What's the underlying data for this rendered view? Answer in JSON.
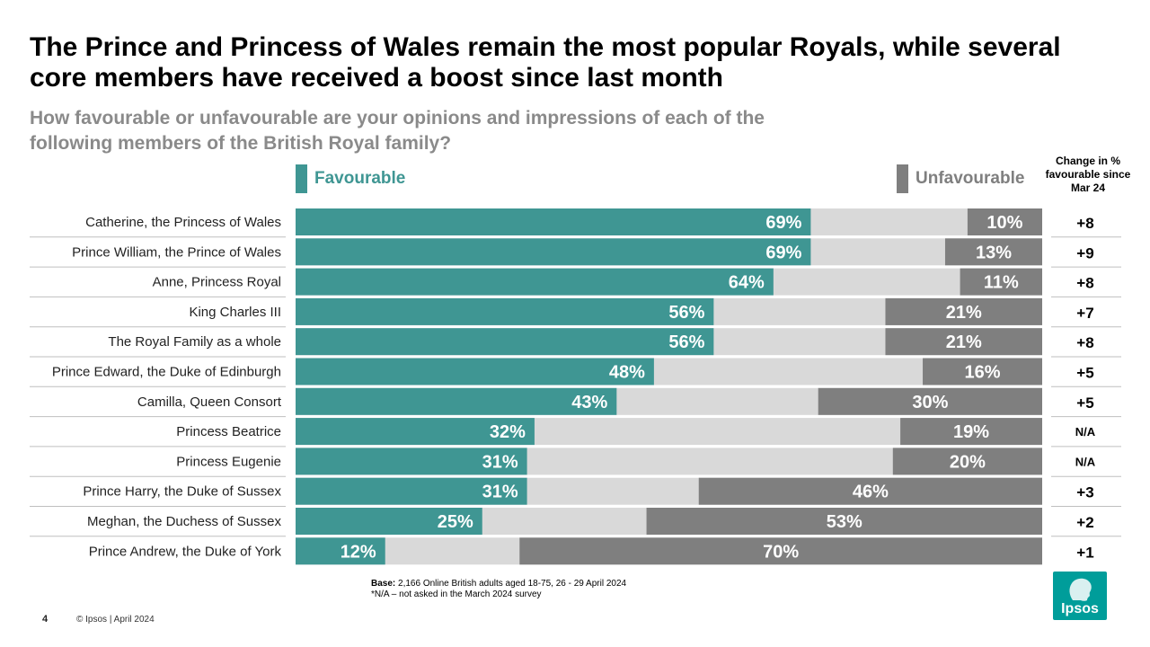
{
  "title": "The Prince and Princess of Wales remain the most popular Royals, while several core members have received a boost since last month",
  "subtitle": "How favourable or unfavourable are your opinions and impressions of each of the following members of the British Royal family?",
  "legend": {
    "favourable": "Favourable",
    "unfavourable": "Unfavourable"
  },
  "change_header": "Change in % favourable since Mar 24",
  "colors": {
    "favourable": "#3f9693",
    "unfavourable": "#7f7f7f",
    "neutral": "#d9d9d9"
  },
  "chart_data": {
    "type": "bar",
    "orientation": "horizontal-stacked",
    "categories": [
      "Catherine, the Princess of Wales",
      "Prince William, the Prince of Wales",
      "Anne, Princess Royal",
      "King Charles III",
      "The Royal Family as a whole",
      "Prince Edward, the Duke of Edinburgh",
      "Camilla, Queen Consort",
      "Princess Beatrice",
      "Princess Eugenie",
      "Prince Harry, the Duke of Sussex",
      "Meghan, the Duchess of Sussex",
      "Prince Andrew, the Duke of York"
    ],
    "series": [
      {
        "name": "Favourable",
        "values": [
          69,
          69,
          64,
          56,
          56,
          48,
          43,
          32,
          31,
          31,
          25,
          12
        ]
      },
      {
        "name": "Unfavourable",
        "values": [
          10,
          13,
          11,
          21,
          21,
          16,
          30,
          19,
          20,
          46,
          53,
          70
        ]
      }
    ],
    "change": [
      "+8",
      "+9",
      "+8",
      "+7",
      "+8",
      "+5",
      "+5",
      "N/A",
      "N/A",
      "+3",
      "+2",
      "+1"
    ],
    "xlim": [
      0,
      100
    ]
  },
  "footnote": {
    "base_label": "Base:",
    "base_text": " 2,166 Online British adults aged 18-75, 26 - 29 April 2024",
    "na_note": "*N/A – not asked in the March 2024 survey"
  },
  "footer": {
    "page_number": "4",
    "copyright": "© Ipsos | April 2024",
    "logo_text": "Ipsos"
  }
}
